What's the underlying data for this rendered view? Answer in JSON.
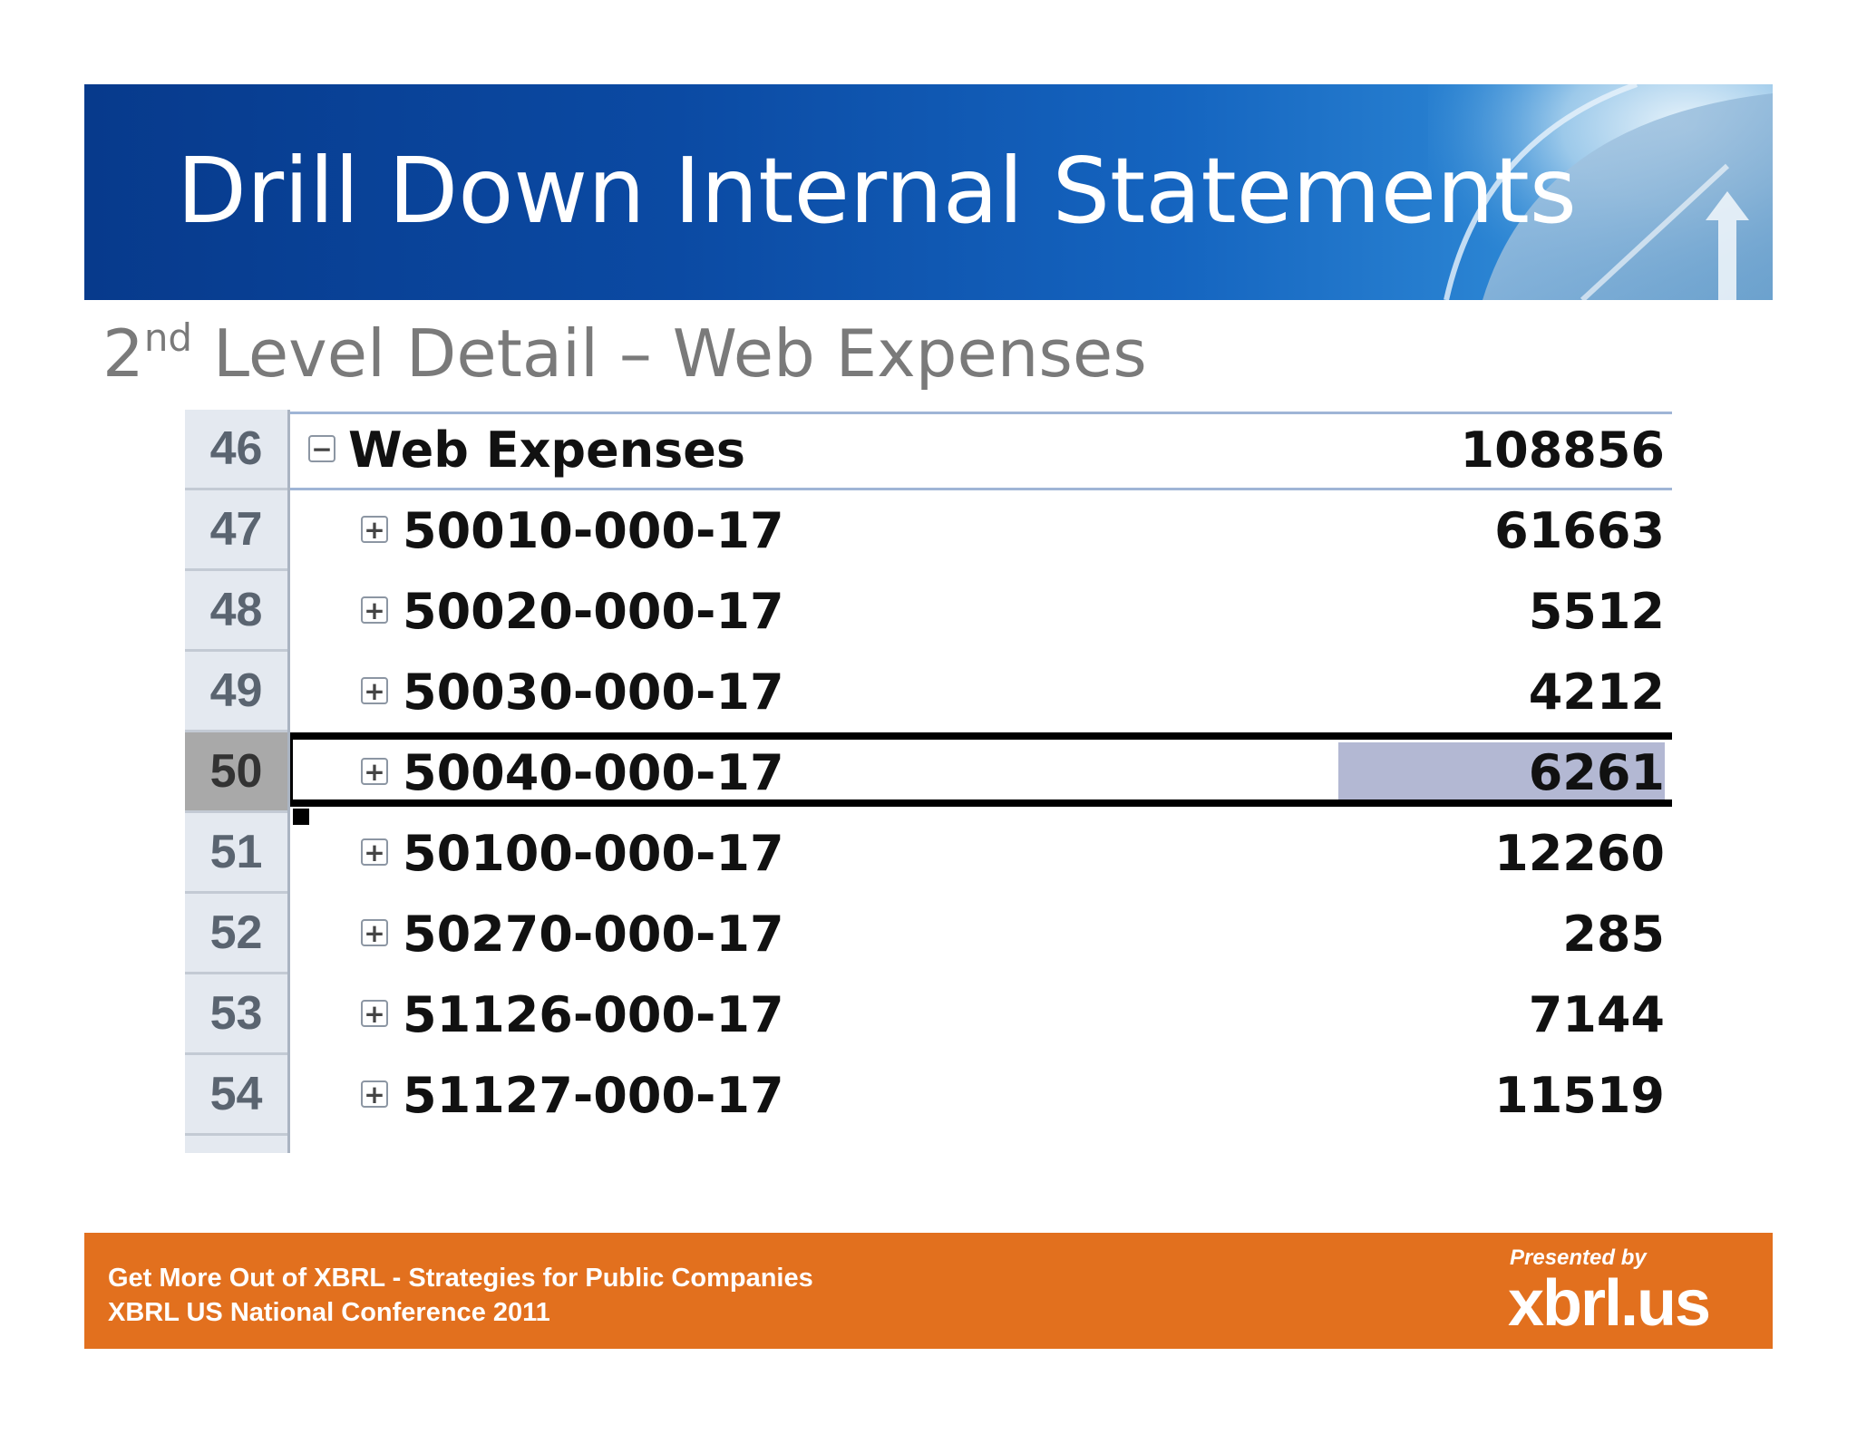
{
  "slide": {
    "title": "Drill Down Internal Statements",
    "subtitle_prefix": "2",
    "subtitle_sup": "nd",
    "subtitle_rest": " Level Detail – Web Expenses"
  },
  "table": {
    "rows": [
      {
        "num": "46",
        "label": "Web Expenses",
        "value": "108856",
        "toggle": "−"
      },
      {
        "num": "47",
        "label": "50010-000-17",
        "value": "61663",
        "toggle": "+"
      },
      {
        "num": "48",
        "label": "50020-000-17",
        "value": "5512",
        "toggle": "+"
      },
      {
        "num": "49",
        "label": "50030-000-17",
        "value": "4212",
        "toggle": "+"
      },
      {
        "num": "50",
        "label": "50040-000-17",
        "value": "6261",
        "toggle": "+"
      },
      {
        "num": "51",
        "label": "50100-000-17",
        "value": "12260",
        "toggle": "+"
      },
      {
        "num": "52",
        "label": "50270-000-17",
        "value": "285",
        "toggle": "+"
      },
      {
        "num": "53",
        "label": "51126-000-17",
        "value": "7144",
        "toggle": "+"
      },
      {
        "num": "54",
        "label": "51127-000-17",
        "value": "11519",
        "toggle": "+"
      }
    ]
  },
  "footer": {
    "line1": "Get More Out of XBRL - Strategies for Public Companies",
    "line2": "XBRL US National Conference 2011",
    "presented_by": "Presented by",
    "logo": "xbrl.us"
  },
  "colors": {
    "banner": "#0b4aa3",
    "footer": "#e2701e",
    "selection_highlight": "#b3b8d3"
  }
}
